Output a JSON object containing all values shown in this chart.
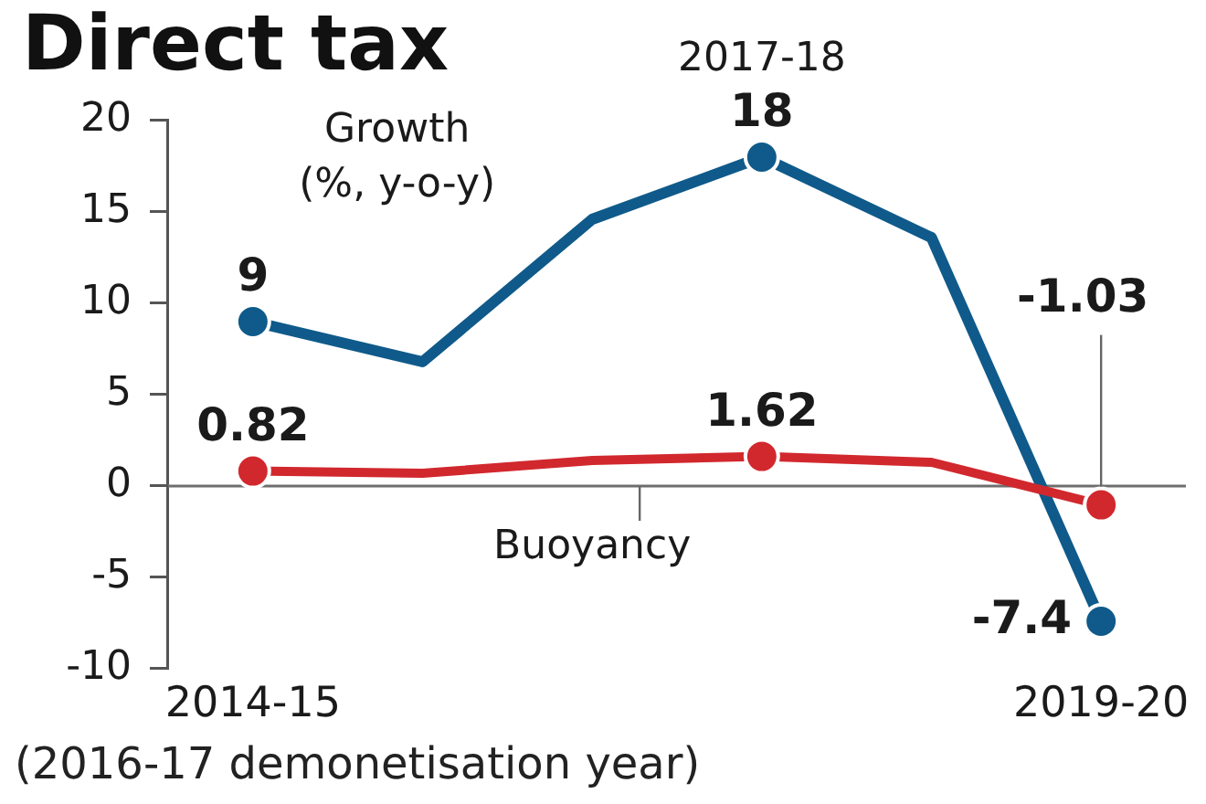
{
  "chart_data": {
    "type": "line",
    "title": "Direct tax",
    "categories": [
      "2014-15",
      null,
      null,
      null,
      null,
      "2019-20"
    ],
    "series": [
      {
        "name": "Growth (%, y-o-y)",
        "color": "#0f5a8a",
        "values": [
          9,
          6.8,
          14.6,
          18,
          13.6,
          -7.4
        ],
        "value_labels": [
          "9",
          null,
          null,
          "18",
          null,
          "-7.4"
        ]
      },
      {
        "name": "Buoyancy",
        "color": "#d1282e",
        "values": [
          0.82,
          0.7,
          1.4,
          1.62,
          1.3,
          -1.03
        ],
        "value_labels": [
          "0.82",
          null,
          null,
          "1.62",
          null,
          "-1.03"
        ]
      }
    ],
    "ylim": [
      -10,
      20
    ],
    "yticks": [
      -10,
      -5,
      0,
      5,
      10,
      15,
      20
    ],
    "ref_lines": [
      {
        "axis": "y",
        "value": 0,
        "color": "#6e6e6e"
      }
    ],
    "annotations": [
      {
        "text": "2017-18",
        "y": 18
      },
      "(2016-17 demonetisation year)"
    ],
    "grid": false,
    "legend": false,
    "marker": "circle",
    "line_style": "solid"
  }
}
